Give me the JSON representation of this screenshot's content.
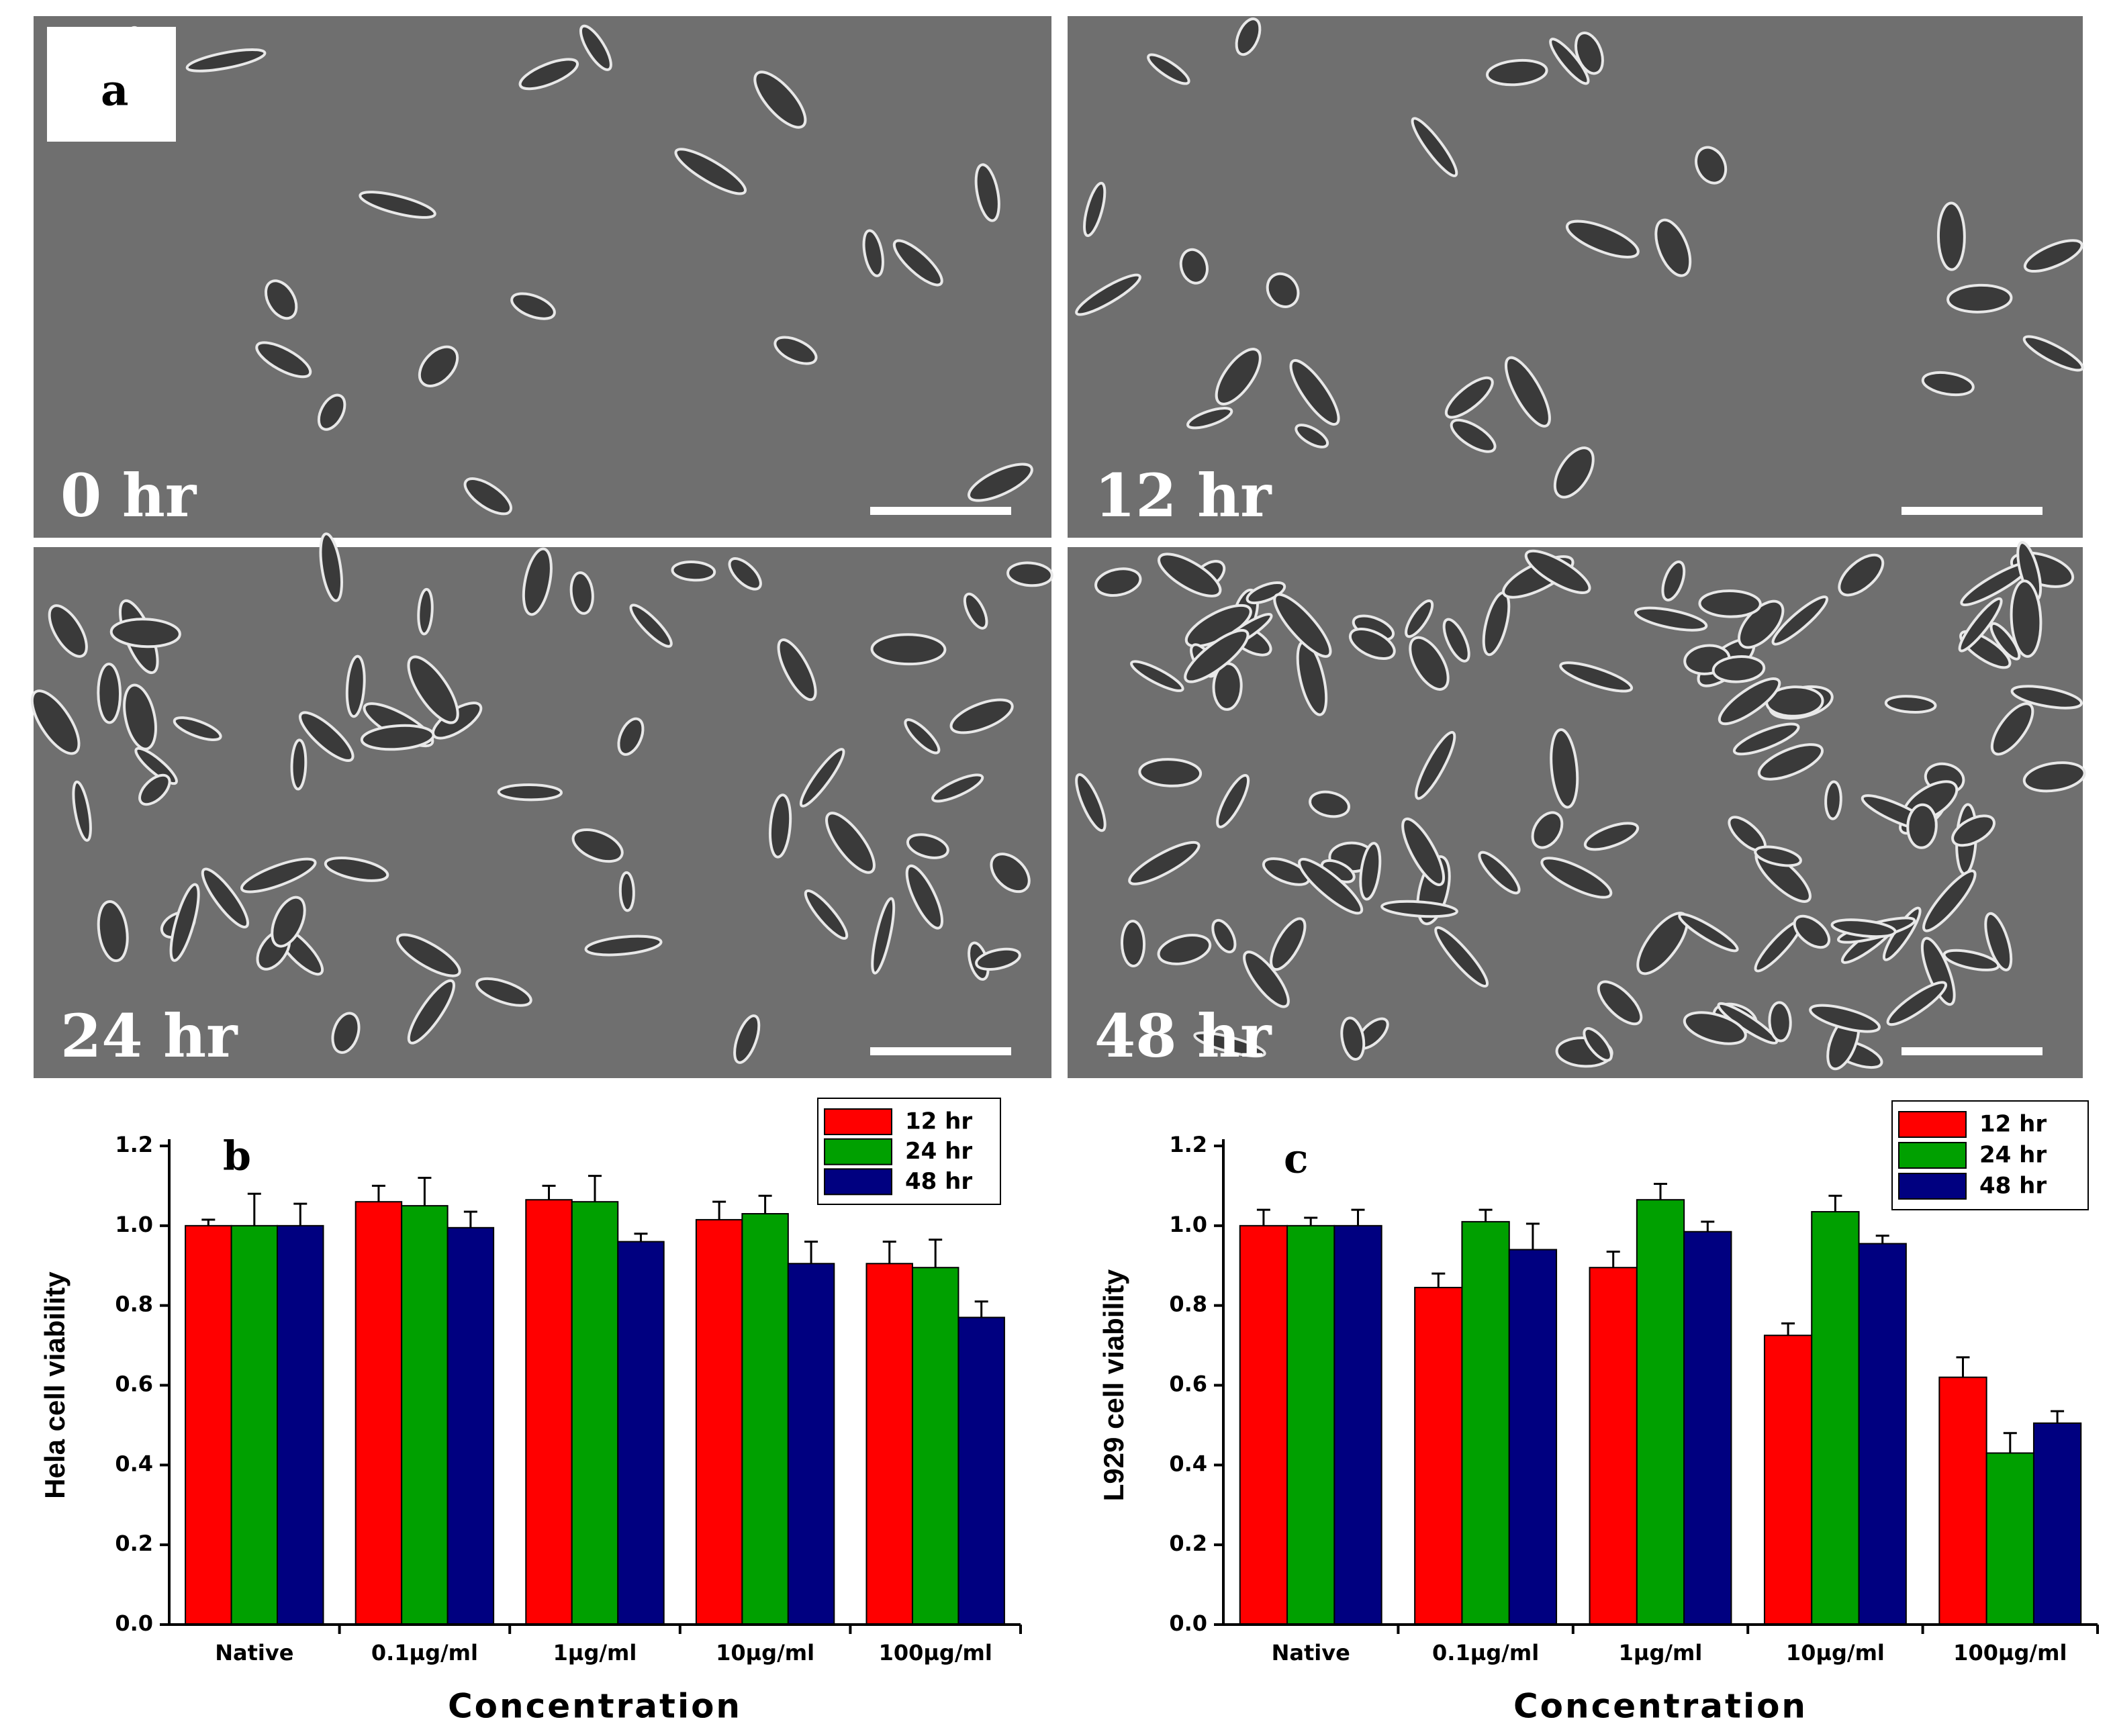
{
  "figure": {
    "panel_label": "a",
    "images": [
      {
        "label": "0 hr"
      },
      {
        "label": "12 hr"
      },
      {
        "label": "24 hr"
      },
      {
        "label": "48 hr"
      }
    ]
  },
  "chart_data": [
    {
      "type": "bar",
      "panel_label": "b",
      "y_label": "Hela cell viability",
      "x_label": "Concentration",
      "categories": [
        "Native",
        "0.1µg/ml",
        "1µg/ml",
        "10µg/ml",
        "100µg/ml"
      ],
      "ylim": [
        0,
        1.2
      ],
      "yticks": [
        {
          "value": 0,
          "label": "0.0"
        },
        0.2,
        0.4,
        0.6,
        0.8,
        {
          "value": 1,
          "label": "1.0"
        },
        1.2
      ],
      "legend": "upper right",
      "series": [
        {
          "name": "12 hr",
          "color": "#ff0000",
          "values": [
            1.0,
            1.06,
            1.065,
            1.015,
            0.905
          ],
          "errors": [
            0.015,
            0.04,
            0.035,
            0.045,
            0.055
          ]
        },
        {
          "name": "24 hr",
          "color": "#00a000",
          "values": [
            1.0,
            1.05,
            1.06,
            1.03,
            0.895
          ],
          "errors": [
            0.08,
            0.07,
            0.065,
            0.045,
            0.07
          ]
        },
        {
          "name": "48 hr",
          "color": "#000080",
          "values": [
            1.0,
            0.995,
            0.96,
            0.905,
            0.77
          ],
          "errors": [
            0.055,
            0.04,
            0.02,
            0.055,
            0.04
          ]
        }
      ]
    },
    {
      "type": "bar",
      "panel_label": "c",
      "y_label": "L929 cell viability",
      "x_label": "Concentration",
      "categories": [
        "Native",
        "0.1µg/ml",
        "1µg/ml",
        "10µg/ml",
        "100µg/ml"
      ],
      "ylim": [
        0,
        1.2
      ],
      "yticks": [
        {
          "value": 0,
          "label": "0.0"
        },
        0.2,
        0.4,
        0.6,
        0.8,
        {
          "value": 1,
          "label": "1.0"
        },
        1.2
      ],
      "legend": "upper right",
      "series": [
        {
          "name": "12 hr",
          "color": "#ff0000",
          "values": [
            1.0,
            0.845,
            0.895,
            0.725,
            0.62
          ],
          "errors": [
            0.04,
            0.035,
            0.04,
            0.03,
            0.05
          ]
        },
        {
          "name": "24 hr",
          "color": "#00a000",
          "values": [
            1.0,
            1.01,
            1.065,
            1.035,
            0.43
          ],
          "errors": [
            0.02,
            0.03,
            0.04,
            0.04,
            0.05
          ]
        },
        {
          "name": "48 hr",
          "color": "#000080",
          "values": [
            1.0,
            0.94,
            0.985,
            0.955,
            0.505
          ],
          "errors": [
            0.04,
            0.065,
            0.025,
            0.02,
            0.03
          ]
        }
      ]
    }
  ]
}
